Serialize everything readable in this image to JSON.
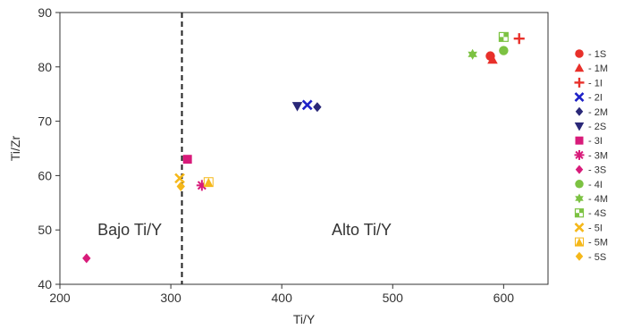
{
  "chart_data": {
    "type": "scatter",
    "xlabel": "Ti/Y",
    "ylabel": "Ti/Zr",
    "xlim": [
      200,
      640
    ],
    "ylim": [
      40,
      90
    ],
    "xticks": [
      200,
      300,
      400,
      500,
      600
    ],
    "yticks": [
      40,
      50,
      60,
      70,
      80,
      90
    ],
    "grid": false,
    "legend_position": "right",
    "divider": {
      "x": 310,
      "style": "dashed"
    },
    "annotations": [
      {
        "text": "Bajo Ti/Y",
        "x": 263,
        "y": 50
      },
      {
        "text": "Alto Ti/Y",
        "x": 472,
        "y": 50
      }
    ],
    "series": [
      {
        "name": "1S",
        "marker": "circle",
        "color": "#e8302a",
        "points": [
          [
            588,
            82
          ]
        ]
      },
      {
        "name": "1M",
        "marker": "triangle",
        "color": "#e8302a",
        "points": [
          [
            590,
            81.3
          ]
        ]
      },
      {
        "name": "1I",
        "marker": "plus",
        "color": "#e8302a",
        "points": [
          [
            614,
            85.2
          ]
        ]
      },
      {
        "name": "2I",
        "marker": "x",
        "color": "#1f22c8",
        "points": [
          [
            423,
            73
          ]
        ]
      },
      {
        "name": "2M",
        "marker": "diamond",
        "color": "#2a2878",
        "points": [
          [
            432,
            72.6
          ]
        ]
      },
      {
        "name": "2S",
        "marker": "triangle-down",
        "color": "#2a2878",
        "points": [
          [
            414,
            72.8
          ]
        ]
      },
      {
        "name": "3I",
        "marker": "square",
        "color": "#d81b7a",
        "points": [
          [
            315,
            63
          ]
        ]
      },
      {
        "name": "3M",
        "marker": "asterisk",
        "color": "#d81b7a",
        "points": [
          [
            328,
            58.2
          ]
        ]
      },
      {
        "name": "3S",
        "marker": "diamond",
        "color": "#d81b7a",
        "points": [
          [
            224,
            44.8
          ]
        ]
      },
      {
        "name": "4I",
        "marker": "circle",
        "color": "#7cc242",
        "points": [
          [
            600,
            83
          ]
        ]
      },
      {
        "name": "4M",
        "marker": "star",
        "color": "#7cc242",
        "points": [
          [
            572,
            82.3
          ]
        ]
      },
      {
        "name": "4S",
        "marker": "checker",
        "color": "#7cc242",
        "points": [
          [
            600,
            85.5
          ]
        ]
      },
      {
        "name": "5I",
        "marker": "x",
        "color": "#f5b81a",
        "points": [
          [
            308,
            59.5
          ]
        ]
      },
      {
        "name": "5M",
        "marker": "triangle-box",
        "color": "#f5b81a",
        "points": [
          [
            334,
            58.8
          ]
        ]
      },
      {
        "name": "5S",
        "marker": "diamond",
        "color": "#f5b81a",
        "points": [
          [
            309,
            58
          ]
        ]
      }
    ]
  }
}
